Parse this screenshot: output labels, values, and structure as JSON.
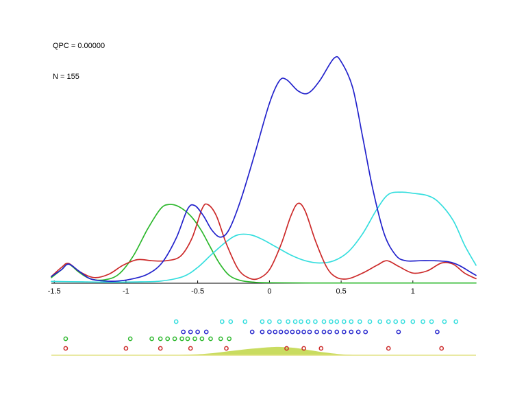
{
  "annotations": {
    "qpc_label": "QPC = 0.00000",
    "n_label": "N = 155"
  },
  "chart_data": {
    "type": "line",
    "title": "",
    "xlabel": "",
    "ylabel": "",
    "grid": false,
    "legend": "none",
    "xlim": [
      -1.52,
      1.44
    ],
    "ylim": [
      0,
      1.05
    ],
    "x_ticks": [
      -1.5,
      -1,
      -0.5,
      0,
      0.5,
      1
    ],
    "x_tick_labels": [
      "-1.5",
      "-1",
      "-0.5",
      "0",
      "0.5",
      "1"
    ],
    "axis_color": "#000000",
    "series": [
      {
        "name": "green-kde",
        "color": "#2db82d",
        "points": [
          [
            -1.52,
            0.025
          ],
          [
            -1.45,
            0.06
          ],
          [
            -1.4,
            0.085
          ],
          [
            -1.33,
            0.05
          ],
          [
            -1.25,
            0.02
          ],
          [
            -1.15,
            0.015
          ],
          [
            -1.05,
            0.04
          ],
          [
            -0.95,
            0.12
          ],
          [
            -0.85,
            0.24
          ],
          [
            -0.76,
            0.33
          ],
          [
            -0.7,
            0.35
          ],
          [
            -0.63,
            0.34
          ],
          [
            -0.55,
            0.3
          ],
          [
            -0.48,
            0.24
          ],
          [
            -0.42,
            0.17
          ],
          [
            -0.35,
            0.09
          ],
          [
            -0.28,
            0.035
          ],
          [
            -0.2,
            0.012
          ],
          [
            -0.1,
            0.004
          ],
          [
            0,
            0.002
          ],
          [
            0.3,
            0.001
          ],
          [
            0.7,
            0.001
          ],
          [
            1.1,
            0.001
          ],
          [
            1.44,
            0.001
          ]
        ]
      },
      {
        "name": "cyan-kde",
        "color": "#35dede",
        "points": [
          [
            -1.52,
            0.008
          ],
          [
            -1.3,
            0.006
          ],
          [
            -1.1,
            0.005
          ],
          [
            -0.9,
            0.006
          ],
          [
            -0.75,
            0.01
          ],
          [
            -0.6,
            0.03
          ],
          [
            -0.5,
            0.07
          ],
          [
            -0.4,
            0.13
          ],
          [
            -0.3,
            0.185
          ],
          [
            -0.22,
            0.215
          ],
          [
            -0.13,
            0.215
          ],
          [
            -0.05,
            0.195
          ],
          [
            0.05,
            0.16
          ],
          [
            0.15,
            0.125
          ],
          [
            0.25,
            0.1
          ],
          [
            0.35,
            0.09
          ],
          [
            0.45,
            0.1
          ],
          [
            0.55,
            0.14
          ],
          [
            0.65,
            0.22
          ],
          [
            0.75,
            0.33
          ],
          [
            0.83,
            0.395
          ],
          [
            0.92,
            0.405
          ],
          [
            1,
            0.4
          ],
          [
            1.1,
            0.39
          ],
          [
            1.18,
            0.36
          ],
          [
            1.28,
            0.28
          ],
          [
            1.36,
            0.17
          ],
          [
            1.44,
            0.08
          ]
        ]
      },
      {
        "name": "red-kde",
        "color": "#cc2929",
        "points": [
          [
            -1.52,
            0.03
          ],
          [
            -1.45,
            0.07
          ],
          [
            -1.4,
            0.088
          ],
          [
            -1.32,
            0.05
          ],
          [
            -1.22,
            0.025
          ],
          [
            -1.12,
            0.04
          ],
          [
            -1.02,
            0.08
          ],
          [
            -0.92,
            0.105
          ],
          [
            -0.82,
            0.1
          ],
          [
            -0.72,
            0.1
          ],
          [
            -0.62,
            0.12
          ],
          [
            -0.54,
            0.2
          ],
          [
            -0.47,
            0.33
          ],
          [
            -0.43,
            0.35
          ],
          [
            -0.37,
            0.3
          ],
          [
            -0.3,
            0.175
          ],
          [
            -0.22,
            0.065
          ],
          [
            -0.15,
            0.025
          ],
          [
            -0.08,
            0.02
          ],
          [
            0,
            0.06
          ],
          [
            0.08,
            0.17
          ],
          [
            0.15,
            0.3
          ],
          [
            0.2,
            0.355
          ],
          [
            0.25,
            0.32
          ],
          [
            0.32,
            0.19
          ],
          [
            0.4,
            0.07
          ],
          [
            0.47,
            0.025
          ],
          [
            0.55,
            0.02
          ],
          [
            0.65,
            0.045
          ],
          [
            0.75,
            0.08
          ],
          [
            0.82,
            0.1
          ],
          [
            0.9,
            0.075
          ],
          [
            1,
            0.045
          ],
          [
            1.1,
            0.055
          ],
          [
            1.2,
            0.09
          ],
          [
            1.28,
            0.085
          ],
          [
            1.36,
            0.045
          ],
          [
            1.44,
            0.02
          ]
        ]
      },
      {
        "name": "blue-kde",
        "color": "#2222cc",
        "points": [
          [
            -1.52,
            0.03
          ],
          [
            -1.45,
            0.06
          ],
          [
            -1.4,
            0.085
          ],
          [
            -1.33,
            0.055
          ],
          [
            -1.25,
            0.02
          ],
          [
            -1.15,
            0.01
          ],
          [
            -1.05,
            0.01
          ],
          [
            -0.95,
            0.02
          ],
          [
            -0.85,
            0.04
          ],
          [
            -0.75,
            0.09
          ],
          [
            -0.65,
            0.2
          ],
          [
            -0.57,
            0.33
          ],
          [
            -0.52,
            0.345
          ],
          [
            -0.46,
            0.3
          ],
          [
            -0.4,
            0.235
          ],
          [
            -0.34,
            0.205
          ],
          [
            -0.28,
            0.24
          ],
          [
            -0.2,
            0.37
          ],
          [
            -0.1,
            0.58
          ],
          [
            0,
            0.8
          ],
          [
            0.07,
            0.9
          ],
          [
            0.12,
            0.905
          ],
          [
            0.2,
            0.855
          ],
          [
            0.27,
            0.845
          ],
          [
            0.35,
            0.9
          ],
          [
            0.45,
            1
          ],
          [
            0.5,
            0.985
          ],
          [
            0.58,
            0.87
          ],
          [
            0.65,
            0.65
          ],
          [
            0.72,
            0.42
          ],
          [
            0.8,
            0.22
          ],
          [
            0.88,
            0.125
          ],
          [
            0.95,
            0.1
          ],
          [
            1.05,
            0.1
          ],
          [
            1.15,
            0.1
          ],
          [
            1.25,
            0.095
          ],
          [
            1.32,
            0.08
          ],
          [
            1.4,
            0.05
          ],
          [
            1.44,
            0.035
          ]
        ]
      }
    ],
    "rug": [
      {
        "name": "cyan-rug",
        "color": "#35dede",
        "values": [
          -0.65,
          -0.33,
          -0.27,
          -0.17,
          -0.05,
          0,
          0.07,
          0.13,
          0.18,
          0.22,
          0.27,
          0.32,
          0.38,
          0.43,
          0.47,
          0.52,
          0.57,
          0.63,
          0.7,
          0.77,
          0.83,
          0.88,
          0.93,
          1,
          1.07,
          1.13,
          1.22,
          1.3
        ]
      },
      {
        "name": "blue-rug",
        "color": "#2222cc",
        "values": [
          -0.6,
          -0.55,
          -0.5,
          -0.44,
          -0.12,
          -0.05,
          0,
          0.04,
          0.08,
          0.12,
          0.16,
          0.2,
          0.24,
          0.28,
          0.33,
          0.38,
          0.42,
          0.47,
          0.52,
          0.57,
          0.62,
          0.67,
          0.9,
          1.17
        ]
      },
      {
        "name": "green-rug",
        "color": "#2db82d",
        "values": [
          -1.42,
          -0.97,
          -0.82,
          -0.76,
          -0.71,
          -0.66,
          -0.61,
          -0.57,
          -0.52,
          -0.47,
          -0.41,
          -0.34,
          -0.28
        ]
      },
      {
        "name": "red-rug",
        "color": "#cc2929",
        "values": [
          -1.42,
          -1,
          -0.76,
          -0.55,
          -0.3,
          0.12,
          0.24,
          0.36,
          0.83,
          1.2
        ]
      }
    ],
    "baseline_density": {
      "name": "overall-density",
      "fill_color": "#c9dc60",
      "line_color": "#e2e284",
      "points": [
        [
          -0.8,
          0
        ],
        [
          -0.65,
          0.04
        ],
        [
          -0.5,
          0.12
        ],
        [
          -0.38,
          0.28
        ],
        [
          -0.25,
          0.55
        ],
        [
          -0.12,
          0.8
        ],
        [
          0,
          0.97
        ],
        [
          0.08,
          1
        ],
        [
          0.18,
          0.88
        ],
        [
          0.28,
          0.62
        ],
        [
          0.38,
          0.35
        ],
        [
          0.48,
          0.15
        ],
        [
          0.58,
          0.04
        ],
        [
          0.68,
          0
        ]
      ]
    }
  }
}
